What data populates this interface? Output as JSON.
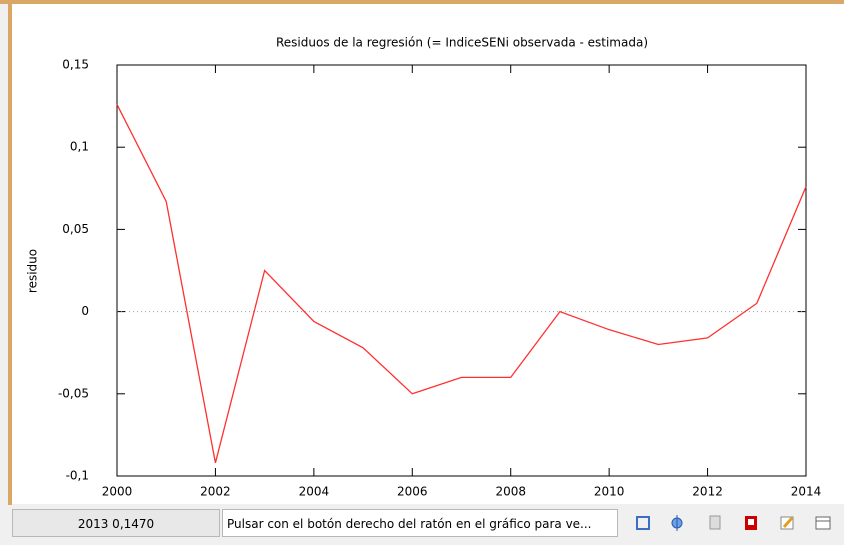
{
  "chart_data": {
    "type": "line",
    "title": "Residuos de la regresión (= IndiceSENi observada - estimada)",
    "ylabel": "residuo",
    "x": [
      2000,
      2001,
      2002,
      2003,
      2004,
      2005,
      2006,
      2007,
      2008,
      2009,
      2010,
      2011,
      2012,
      2013,
      2014
    ],
    "values": [
      0.126,
      0.067,
      -0.092,
      0.025,
      -0.006,
      -0.022,
      -0.05,
      -0.04,
      -0.04,
      0.0,
      -0.011,
      -0.02,
      -0.016,
      0.005,
      0.076
    ],
    "color": "#ff3030",
    "xlim": [
      2000,
      2014
    ],
    "xticks": [
      2000,
      2002,
      2004,
      2006,
      2008,
      2010,
      2012,
      2014
    ],
    "ylim": [
      -0.1,
      0.15
    ],
    "yticks": [
      {
        "value": -0.1,
        "label": "-0,1"
      },
      {
        "value": -0.05,
        "label": "-0,05"
      },
      0,
      {
        "value": 0.05,
        "label": "0,05"
      },
      {
        "value": 0.1,
        "label": "0,1"
      },
      {
        "value": 0.15,
        "label": "0,15"
      }
    ],
    "zero_line": true
  },
  "status_bar": {
    "position": "2013 0,1470",
    "hint": "Pulsar con el botón derecho del ratón en el gráfico para ve..."
  }
}
